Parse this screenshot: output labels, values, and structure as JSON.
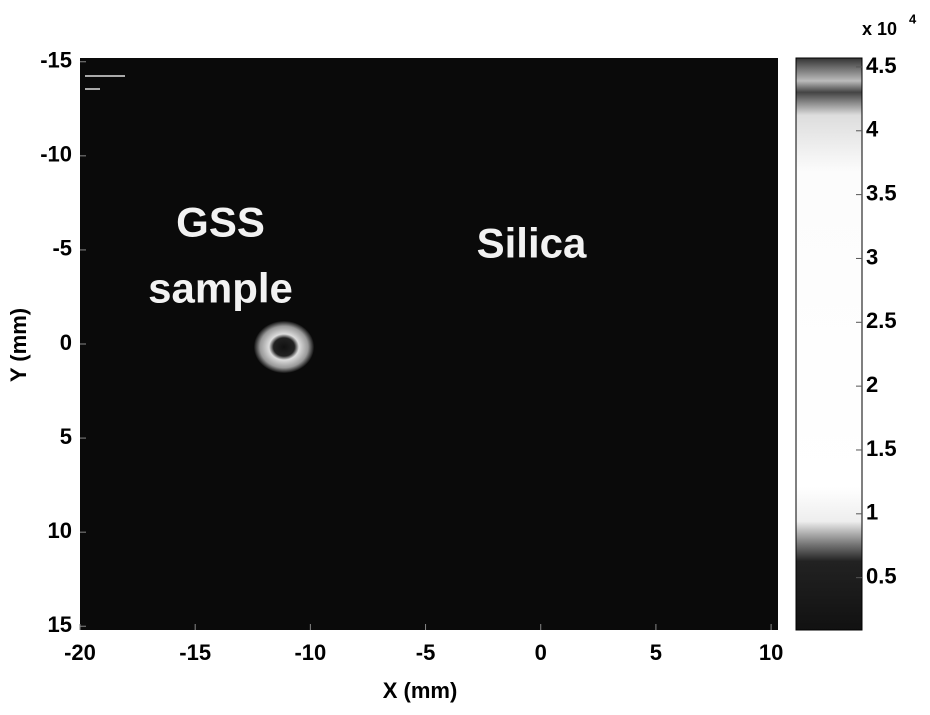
{
  "chart_data": {
    "type": "image",
    "x_label": "X (mm)",
    "y_label": "Y (mm)",
    "xlim": [
      -20,
      10.3
    ],
    "xticks": [
      -20,
      -15,
      -10,
      -5,
      0,
      5,
      10
    ],
    "ylim": [
      -15.2,
      15.2
    ],
    "yticks": [
      -15,
      -10,
      -5,
      0,
      5,
      10,
      15
    ],
    "y_reversed": true,
    "colorbar": {
      "lim": [
        0.09,
        4.57
      ],
      "ticks": [
        0.5,
        1,
        1.5,
        2,
        2.5,
        3,
        3.5,
        4,
        4.5
      ],
      "multiplier": "x 10",
      "exponent": "4"
    },
    "annotations": [
      {
        "text": "GSS",
        "x": -13.9,
        "y": -6.3
      },
      {
        "text": "sample",
        "x": -13.9,
        "y": -2.8
      },
      {
        "text": "Silica",
        "x": -0.4,
        "y": -5.2
      }
    ]
  }
}
